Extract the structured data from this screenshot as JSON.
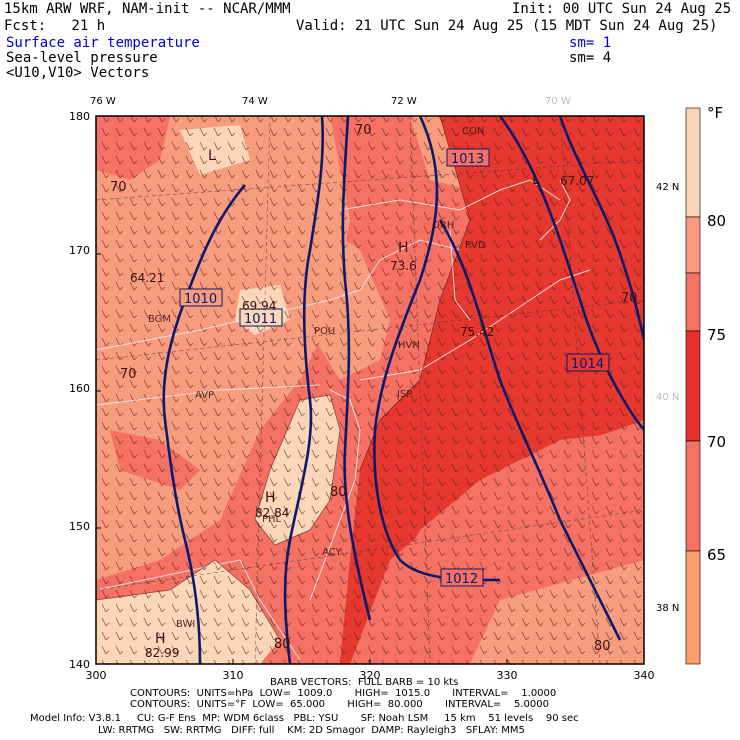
{
  "header": {
    "model_line": "15km ARW WRF, NAM-init -- NCAR/MMM",
    "init": "Init: 00 UTC Sun 24 Aug 25",
    "fcst": "Fcst:   21 h",
    "valid": "Valid: 21 UTC Sun 24 Aug 25 (15 MDT Sun 24 Aug 25)",
    "field1": "Surface air temperature",
    "field1_sm": "sm= 1",
    "field2": "Sea-level pressure",
    "field2_sm": "sm= 4",
    "field3": "<U10,V10> Vectors"
  },
  "axes": {
    "top_lon": [
      "76 W",
      "74 W",
      "72 W",
      "70 W"
    ],
    "right_lat": [
      "42 N",
      "40 N",
      "38 N"
    ],
    "left_y": [
      "180",
      "170",
      "160",
      "150",
      "140"
    ],
    "bottom_x": [
      "300",
      "310",
      "320",
      "330",
      "340"
    ]
  },
  "colorbar": {
    "unit": "°F",
    "ticks": [
      "80",
      "75",
      "70",
      "65"
    ],
    "colors": [
      "#fdd4b3",
      "#f79a7d",
      "#f47163",
      "#e6312a",
      "#f47163",
      "#f89f6d",
      "#fcc18a"
    ]
  },
  "map": {
    "ocean_color": "#e6382e",
    "land_color": "#f47163",
    "warm_color": "#f89c7e",
    "hot_color": "#fcd6b8",
    "contour_color": "#0a1a6e",
    "pressure_labels": [
      "1010",
      "1011",
      "1013",
      "1014",
      "1012"
    ],
    "temp_labels": [
      "64.21",
      "69.94",
      "67.07",
      "73.6",
      "82.84",
      "82.99",
      "75.42"
    ],
    "city_labels": [
      "BGM",
      "AVP",
      "POU",
      "HVN",
      "ISP",
      "PHL",
      "ACY",
      "BWI",
      "CON",
      "ORH",
      "PVD"
    ],
    "isotherm_labels": [
      "70",
      "70",
      "70",
      "80",
      "80",
      "80",
      "70"
    ]
  },
  "footer": {
    "barb": "BARB VECTORS:  FULL BARB = 10 kts",
    "contours1": "CONTOURS:  UNITS=hPa  LOW=  1009.0       HIGH=  1015.0       INTERVAL=    1.0000",
    "contours2": "CONTOURS:  UNITS=°F  LOW=  65.000       HIGH=  80.000       INTERVAL=    5.0000",
    "model_info1": "Model Info: V3.8.1     CU: G-F Ens  MP: WDM 6class   PBL: YSU       SF: Noah LSM     15 km    51 levels    90 sec",
    "model_info2": "LW: RRTMG   SW: RRTMG   DIFF: full    KM: 2D Smagor  DAMP: Rayleigh3   SFLAY: MM5"
  }
}
